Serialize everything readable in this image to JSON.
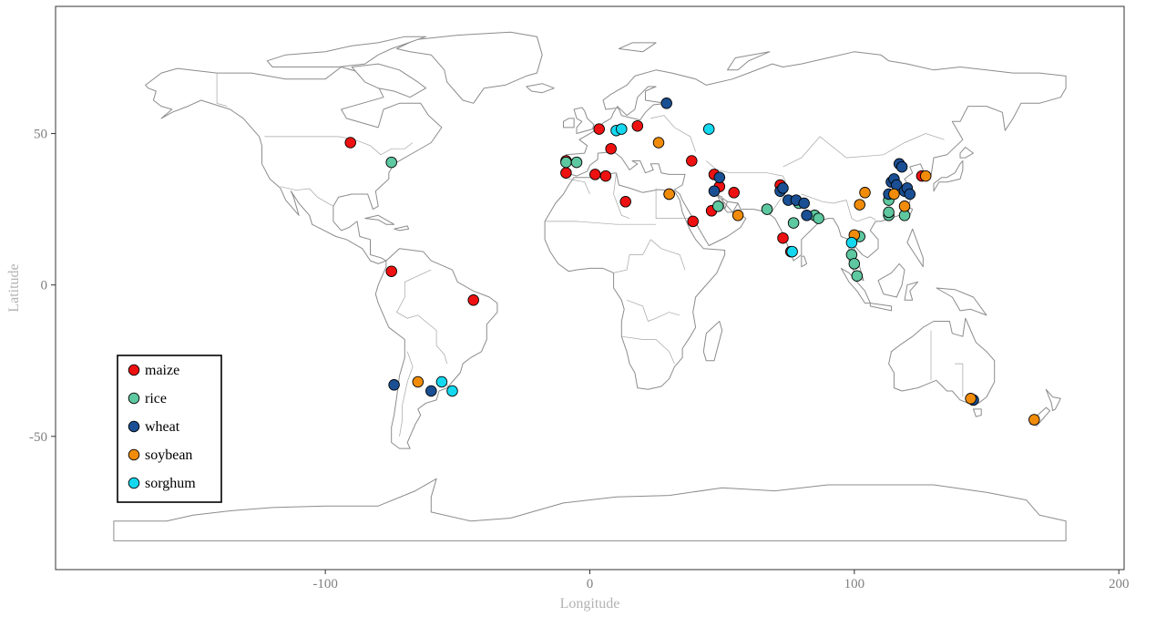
{
  "chart_data": {
    "type": "scatter",
    "title": "",
    "xlabel": "Longitude",
    "ylabel": "Latitude",
    "xlim": [
      -202,
      202
    ],
    "ylim": [
      -94,
      92
    ],
    "xticks": [
      -100,
      0,
      100,
      200
    ],
    "yticks": [
      50,
      0,
      -50
    ],
    "grid": false,
    "legend_position": "bottom-left inside",
    "basemap": "world country outlines",
    "series": [
      {
        "name": "maize",
        "color": "#ee1111",
        "points": [
          [
            -90.5,
            47
          ],
          [
            -75,
            4.5
          ],
          [
            -44,
            -5
          ],
          [
            -9,
            41
          ],
          [
            -9,
            37
          ],
          [
            2,
            36.5
          ],
          [
            3.5,
            51.5
          ],
          [
            6,
            36
          ],
          [
            8,
            45
          ],
          [
            13.5,
            27.5
          ],
          [
            18,
            52.5
          ],
          [
            38.5,
            41
          ],
          [
            39,
            21
          ],
          [
            46,
            24.5
          ],
          [
            47,
            36.5
          ],
          [
            49,
            32.5
          ],
          [
            54.5,
            30.5
          ],
          [
            72,
            33
          ],
          [
            73,
            15.5
          ],
          [
            76,
            11
          ],
          [
            125.5,
            36
          ]
        ]
      },
      {
        "name": "rice",
        "color": "#5ec8a0",
        "points": [
          [
            -75,
            40.5
          ],
          [
            -9,
            40.5
          ],
          [
            -5,
            40.5
          ],
          [
            48.5,
            26
          ],
          [
            67,
            25
          ],
          [
            77,
            20.5
          ],
          [
            79,
            27
          ],
          [
            85,
            23
          ],
          [
            86.5,
            22
          ],
          [
            99,
            10
          ],
          [
            100,
            7
          ],
          [
            101,
            3
          ],
          [
            102,
            16
          ],
          [
            113,
            23
          ],
          [
            113,
            24
          ],
          [
            113,
            28
          ],
          [
            119,
            23
          ]
        ]
      },
      {
        "name": "wheat",
        "color": "#1a4f94",
        "points": [
          [
            -74,
            -33
          ],
          [
            -60,
            -35
          ],
          [
            29,
            60
          ],
          [
            30,
            30
          ],
          [
            47,
            31
          ],
          [
            49,
            35.5
          ],
          [
            72,
            31
          ],
          [
            73,
            32
          ],
          [
            75,
            28
          ],
          [
            78,
            28
          ],
          [
            81,
            27
          ],
          [
            82,
            23
          ],
          [
            113,
            30
          ],
          [
            114,
            34
          ],
          [
            115,
            35
          ],
          [
            116,
            33
          ],
          [
            117,
            40
          ],
          [
            118,
            39
          ],
          [
            119,
            31
          ],
          [
            120,
            32
          ],
          [
            121,
            30
          ],
          [
            145,
            -38
          ]
        ]
      },
      {
        "name": "soybean",
        "color": "#f08c0a",
        "points": [
          [
            -65,
            -32
          ],
          [
            26,
            47
          ],
          [
            30,
            30
          ],
          [
            56,
            23
          ],
          [
            100,
            16.5
          ],
          [
            102,
            26.5
          ],
          [
            104,
            30.5
          ],
          [
            115,
            30
          ],
          [
            119,
            26
          ],
          [
            127,
            36
          ],
          [
            144,
            -37.5
          ],
          [
            168,
            -44.5
          ]
        ]
      },
      {
        "name": "sorghum",
        "color": "#14d8f0",
        "points": [
          [
            -56,
            -32
          ],
          [
            -52,
            -35
          ],
          [
            10,
            51
          ],
          [
            12,
            51.5
          ],
          [
            45,
            51.5
          ],
          [
            76.5,
            11
          ],
          [
            99,
            14
          ]
        ]
      }
    ]
  }
}
